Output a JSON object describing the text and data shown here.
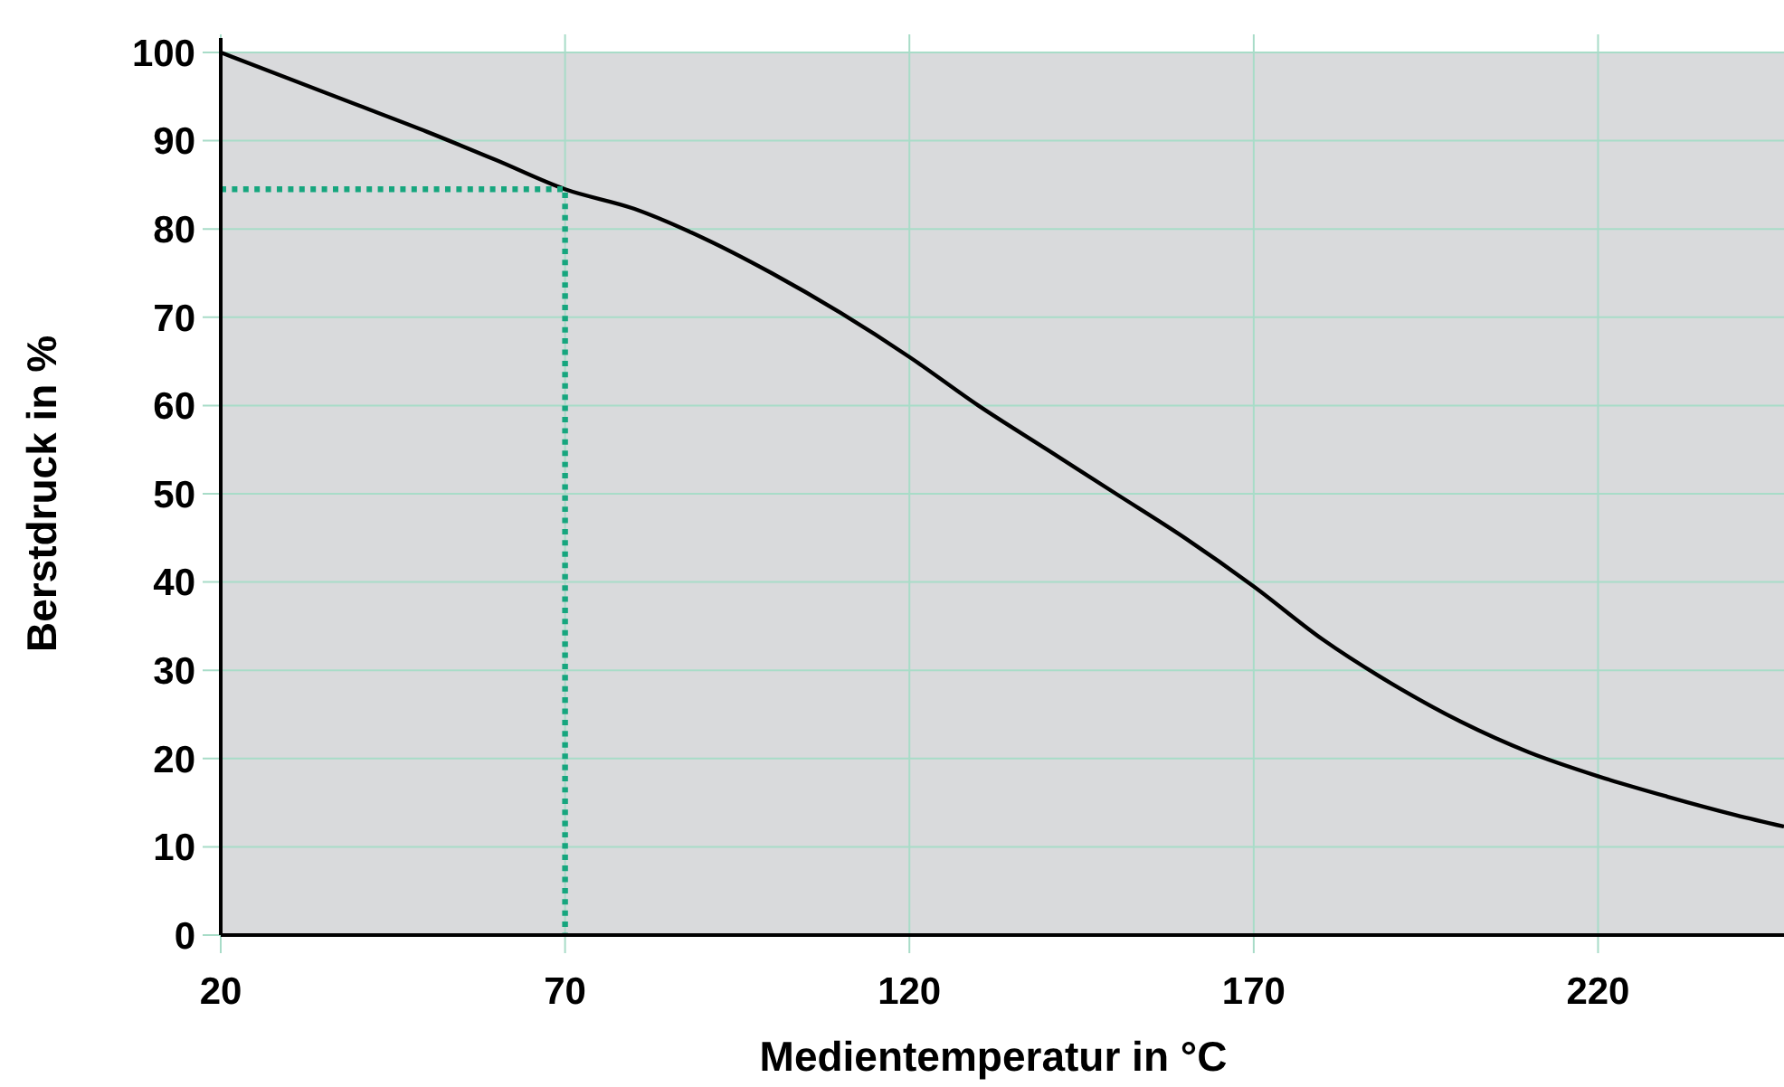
{
  "chart_data": {
    "type": "line",
    "xlabel": "Medientemperatur in °C",
    "ylabel": "Berstdruck in %",
    "xlim": [
      20,
      247
    ],
    "xticks": [
      20,
      70,
      120,
      170,
      220
    ],
    "ylim": [
      0,
      100
    ],
    "yticks": [
      0,
      10,
      20,
      30,
      40,
      50,
      60,
      70,
      80,
      90,
      100
    ],
    "grid": true,
    "marker": "none",
    "series": [
      {
        "color": "#000000",
        "line_style": "solid",
        "x": [
          20,
          30,
          40,
          50,
          60,
          70,
          80,
          90,
          100,
          110,
          120,
          130,
          140,
          150,
          160,
          170,
          180,
          190,
          200,
          210,
          220,
          230,
          240,
          247
        ],
        "values": [
          100,
          97,
          94,
          91,
          87.8,
          84.5,
          82.3,
          79,
          75,
          70.5,
          65.5,
          60,
          55,
          50,
          45,
          39.5,
          33.5,
          28.5,
          24.2,
          20.7,
          18,
          15.7,
          13.6,
          12.3
        ]
      },
      {
        "color": "#16a67e",
        "line_style": "dotted",
        "x": [
          20,
          70,
          70
        ],
        "values": [
          84.5,
          84.5,
          0
        ]
      }
    ]
  }
}
